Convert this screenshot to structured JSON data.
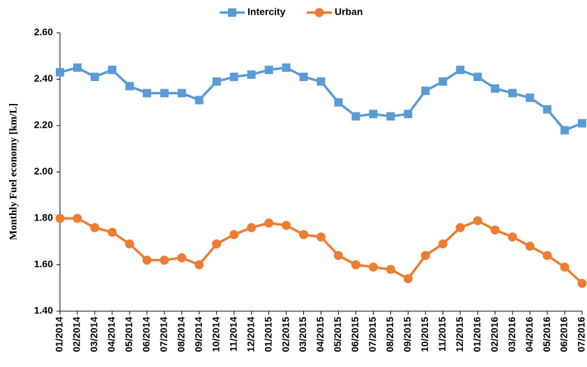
{
  "chart_data": {
    "type": "line",
    "y_label": "Monthly Fuel economy [km/L]",
    "categories": [
      "01/2014",
      "02/2014",
      "03/2014",
      "04/2014",
      "05/2014",
      "06/2014",
      "07/2014",
      "08/2014",
      "09/2014",
      "10/2014",
      "11/2014",
      "12/2014",
      "01/2015",
      "02/2015",
      "03/2015",
      "04/2015",
      "05/2015",
      "06/2015",
      "07/2015",
      "08/2015",
      "09/2015",
      "10/2015",
      "11/2015",
      "12/2015",
      "01/2016",
      "02/2016",
      "03/2016",
      "04/2016",
      "05/2016",
      "06/2016",
      "07/2016"
    ],
    "series": [
      {
        "name": "Intercity",
        "color": "#5b9bd5",
        "marker": "square",
        "values": [
          2.43,
          2.45,
          2.41,
          2.44,
          2.37,
          2.34,
          2.34,
          2.34,
          2.31,
          2.39,
          2.41,
          2.42,
          2.44,
          2.45,
          2.41,
          2.39,
          2.3,
          2.24,
          2.25,
          2.24,
          2.25,
          2.35,
          2.39,
          2.44,
          2.41,
          2.36,
          2.34,
          2.32,
          2.27,
          2.18,
          2.21
        ]
      },
      {
        "name": "Urban",
        "color": "#ed7d31",
        "marker": "circle",
        "values": [
          1.8,
          1.8,
          1.76,
          1.74,
          1.69,
          1.62,
          1.62,
          1.63,
          1.6,
          1.69,
          1.73,
          1.76,
          1.78,
          1.77,
          1.73,
          1.72,
          1.64,
          1.6,
          1.59,
          1.58,
          1.54,
          1.64,
          1.69,
          1.76,
          1.79,
          1.75,
          1.72,
          1.68,
          1.64,
          1.59,
          1.52
        ]
      }
    ],
    "ylim": [
      1.4,
      2.6
    ],
    "yticks": [
      {
        "value": 1.4,
        "label": "1.40"
      },
      {
        "value": 1.6,
        "label": "1.60"
      },
      {
        "value": 1.8,
        "label": "1.80"
      },
      {
        "value": 2.0,
        "label": "2.00"
      },
      {
        "value": 2.2,
        "label": "2.20"
      },
      {
        "value": 2.4,
        "label": "2.40"
      },
      {
        "value": 2.6,
        "label": "2.60"
      }
    ],
    "grid": false,
    "legend": "top"
  }
}
